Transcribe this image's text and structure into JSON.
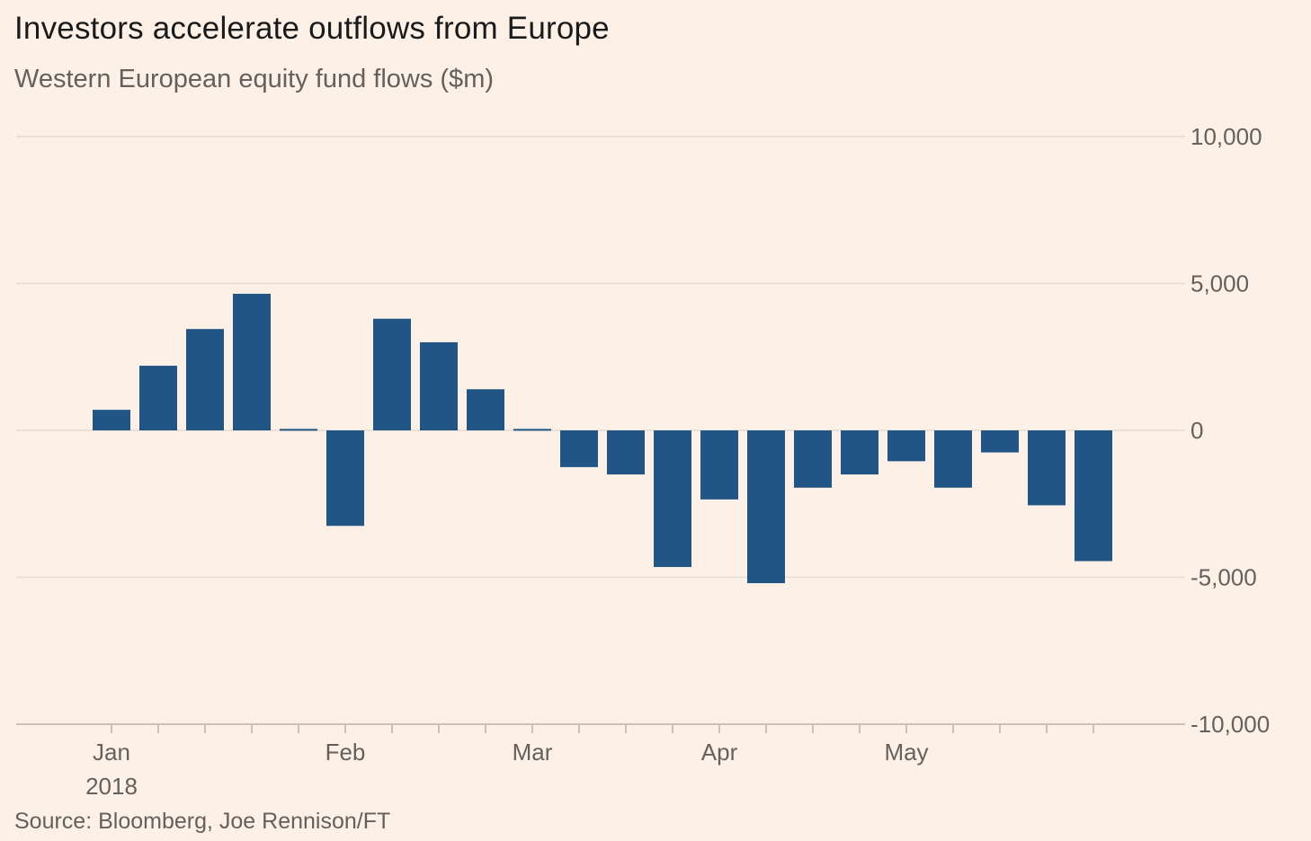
{
  "chart_data": {
    "type": "bar",
    "title": "Investors accelerate outflows from Europe",
    "subtitle": "Western European equity fund flows ($m)",
    "source": "Source: Bloomberg, Joe Rennison/FT",
    "xlabel": "",
    "ylabel": "",
    "ylim": [
      -10000,
      10000
    ],
    "yticks": [
      10000,
      5000,
      0,
      -5000,
      -10000
    ],
    "ytick_labels": [
      "10,000",
      "5,000",
      "0",
      "-5,000",
      "-10,000"
    ],
    "grid": true,
    "month_labels": [
      {
        "label": "Jan",
        "week": 0
      },
      {
        "label": "Feb",
        "week": 5
      },
      {
        "label": "Mar",
        "week": 9
      },
      {
        "label": "Apr",
        "week": 13
      },
      {
        "label": "May",
        "week": 17
      }
    ],
    "year_label": "2018",
    "bar_color": "#215586",
    "series": [
      {
        "name": "Western European equity fund flows",
        "values": [
          700,
          2200,
          3450,
          4650,
          50,
          -3250,
          3800,
          3000,
          1400,
          50,
          -1250,
          -1500,
          -4650,
          -2350,
          -5200,
          -1950,
          -1500,
          -1050,
          -1950,
          -750,
          -2550,
          -4450
        ]
      }
    ]
  }
}
